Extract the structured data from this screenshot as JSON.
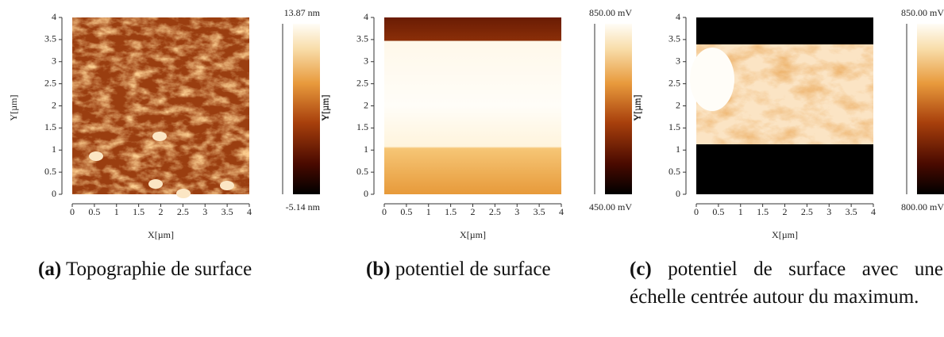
{
  "panels": [
    {
      "xlabel": "X[µm]",
      "ylabel": "Y[µm]",
      "colorbar_ylabel": "Y[µm]",
      "xlim": [
        0,
        4
      ],
      "ylim": [
        0,
        4
      ],
      "xticks": [
        0,
        0.5,
        1,
        1.5,
        2,
        2.5,
        3,
        3.5,
        4
      ],
      "yticks": [
        0,
        0.5,
        1,
        1.5,
        2,
        2.5,
        3,
        3.5,
        4
      ],
      "colorbar_max": "13.87 nm",
      "colorbar_min": "-5.14 nm",
      "caption_label": "(a)",
      "caption": "Topographie de surface"
    },
    {
      "xlabel": "X[µm]",
      "ylabel": "Y[µm]",
      "colorbar_ylabel": "Y[µm]",
      "xlim": [
        0,
        4
      ],
      "ylim": [
        0,
        4
      ],
      "xticks": [
        0,
        0.5,
        1,
        1.5,
        2,
        2.5,
        3,
        3.5,
        4
      ],
      "yticks": [
        0,
        0.5,
        1,
        1.5,
        2,
        2.5,
        3,
        3.5,
        4
      ],
      "colorbar_max": "850.00 mV",
      "colorbar_min": "450.00 mV",
      "caption_label": "(b)",
      "caption": "potentiel de surface"
    },
    {
      "xlabel": "X[µm]",
      "ylabel": "Y[µm]",
      "colorbar_ylabel": "Y[µm]",
      "xlim": [
        0,
        4
      ],
      "ylim": [
        0,
        4
      ],
      "xticks": [
        0,
        0.5,
        1,
        1.5,
        2,
        2.5,
        3,
        3.5,
        4
      ],
      "yticks": [
        0,
        0.5,
        1,
        1.5,
        2,
        2.5,
        3,
        3.5,
        4
      ],
      "colorbar_max": "850.00 mV",
      "colorbar_min": "800.00 mV",
      "caption_label": "(c)",
      "caption": "potentiel de surface avec une échelle centrée autour du maxi­mum."
    }
  ]
}
